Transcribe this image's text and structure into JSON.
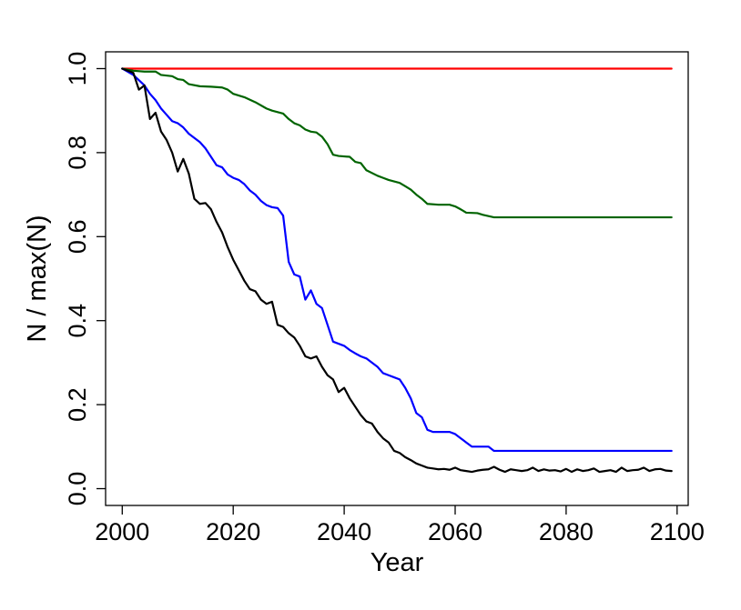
{
  "chart_data": {
    "type": "line",
    "title": "",
    "xlabel": "Year",
    "ylabel": "N / max(N)",
    "xlim": [
      1997,
      2102
    ],
    "ylim": [
      -0.04,
      1.04
    ],
    "x_ticks": [
      2000,
      2020,
      2040,
      2060,
      2080,
      2100
    ],
    "y_ticks": [
      0.0,
      0.2,
      0.4,
      0.6,
      0.8,
      1.0
    ],
    "x_tick_labels": [
      "2000",
      "2020",
      "2040",
      "2060",
      "2080",
      "2100"
    ],
    "y_tick_labels": [
      "0.0",
      "0.2",
      "0.4",
      "0.6",
      "0.8",
      "1.0"
    ],
    "grid": false,
    "series": [
      {
        "color": "#ff0000",
        "points": [
          [
            2000,
            1.0
          ],
          [
            2099,
            1.0
          ]
        ]
      },
      {
        "color": "#006400",
        "points": [
          [
            2000,
            1.0
          ],
          [
            2002,
            0.995
          ],
          [
            2004,
            0.993
          ],
          [
            2006,
            0.993
          ],
          [
            2007,
            0.985
          ],
          [
            2009,
            0.982
          ],
          [
            2010,
            0.975
          ],
          [
            2011,
            0.973
          ],
          [
            2012,
            0.963
          ],
          [
            2014,
            0.958
          ],
          [
            2016,
            0.957
          ],
          [
            2018,
            0.955
          ],
          [
            2019,
            0.95
          ],
          [
            2020,
            0.94
          ],
          [
            2022,
            0.932
          ],
          [
            2024,
            0.92
          ],
          [
            2026,
            0.905
          ],
          [
            2027,
            0.9
          ],
          [
            2029,
            0.893
          ],
          [
            2030,
            0.88
          ],
          [
            2031,
            0.87
          ],
          [
            2032,
            0.865
          ],
          [
            2033,
            0.855
          ],
          [
            2034,
            0.85
          ],
          [
            2035,
            0.848
          ],
          [
            2036,
            0.838
          ],
          [
            2037,
            0.82
          ],
          [
            2038,
            0.795
          ],
          [
            2039,
            0.792
          ],
          [
            2041,
            0.79
          ],
          [
            2042,
            0.778
          ],
          [
            2043,
            0.775
          ],
          [
            2044,
            0.758
          ],
          [
            2046,
            0.745
          ],
          [
            2047,
            0.74
          ],
          [
            2048,
            0.735
          ],
          [
            2050,
            0.728
          ],
          [
            2051,
            0.72
          ],
          [
            2052,
            0.712
          ],
          [
            2053,
            0.7
          ],
          [
            2054,
            0.69
          ],
          [
            2055,
            0.678
          ],
          [
            2057,
            0.676
          ],
          [
            2059,
            0.676
          ],
          [
            2060,
            0.672
          ],
          [
            2061,
            0.665
          ],
          [
            2062,
            0.657
          ],
          [
            2064,
            0.656
          ],
          [
            2065,
            0.652
          ],
          [
            2066,
            0.649
          ],
          [
            2067,
            0.646
          ],
          [
            2070,
            0.646
          ],
          [
            2080,
            0.646
          ],
          [
            2099,
            0.646
          ]
        ]
      },
      {
        "color": "#0000ff",
        "points": [
          [
            2000,
            1.0
          ],
          [
            2002,
            0.985
          ],
          [
            2004,
            0.96
          ],
          [
            2005,
            0.94
          ],
          [
            2006,
            0.925
          ],
          [
            2007,
            0.905
          ],
          [
            2008,
            0.89
          ],
          [
            2009,
            0.875
          ],
          [
            2010,
            0.87
          ],
          [
            2011,
            0.86
          ],
          [
            2012,
            0.845
          ],
          [
            2013,
            0.835
          ],
          [
            2014,
            0.825
          ],
          [
            2015,
            0.81
          ],
          [
            2016,
            0.79
          ],
          [
            2017,
            0.77
          ],
          [
            2018,
            0.765
          ],
          [
            2019,
            0.748
          ],
          [
            2020,
            0.74
          ],
          [
            2021,
            0.735
          ],
          [
            2022,
            0.725
          ],
          [
            2023,
            0.71
          ],
          [
            2024,
            0.7
          ],
          [
            2025,
            0.685
          ],
          [
            2026,
            0.675
          ],
          [
            2027,
            0.67
          ],
          [
            2028,
            0.668
          ],
          [
            2029,
            0.65
          ],
          [
            2030,
            0.54
          ],
          [
            2031,
            0.51
          ],
          [
            2032,
            0.505
          ],
          [
            2033,
            0.45
          ],
          [
            2034,
            0.472
          ],
          [
            2035,
            0.44
          ],
          [
            2036,
            0.43
          ],
          [
            2037,
            0.39
          ],
          [
            2038,
            0.35
          ],
          [
            2040,
            0.34
          ],
          [
            2041,
            0.33
          ],
          [
            2042,
            0.322
          ],
          [
            2043,
            0.315
          ],
          [
            2044,
            0.31
          ],
          [
            2045,
            0.3
          ],
          [
            2046,
            0.29
          ],
          [
            2047,
            0.275
          ],
          [
            2048,
            0.27
          ],
          [
            2049,
            0.265
          ],
          [
            2050,
            0.26
          ],
          [
            2051,
            0.24
          ],
          [
            2052,
            0.215
          ],
          [
            2053,
            0.18
          ],
          [
            2054,
            0.17
          ],
          [
            2055,
            0.14
          ],
          [
            2056,
            0.135
          ],
          [
            2059,
            0.135
          ],
          [
            2060,
            0.13
          ],
          [
            2061,
            0.12
          ],
          [
            2062,
            0.11
          ],
          [
            2063,
            0.1
          ],
          [
            2066,
            0.1
          ],
          [
            2067,
            0.09
          ],
          [
            2070,
            0.09
          ],
          [
            2080,
            0.09
          ],
          [
            2099,
            0.09
          ]
        ]
      },
      {
        "color": "#000000",
        "points": [
          [
            2000,
            1.0
          ],
          [
            2002,
            0.99
          ],
          [
            2003,
            0.95
          ],
          [
            2004,
            0.96
          ],
          [
            2005,
            0.88
          ],
          [
            2006,
            0.895
          ],
          [
            2007,
            0.85
          ],
          [
            2008,
            0.83
          ],
          [
            2009,
            0.8
          ],
          [
            2010,
            0.755
          ],
          [
            2011,
            0.785
          ],
          [
            2012,
            0.75
          ],
          [
            2013,
            0.69
          ],
          [
            2014,
            0.678
          ],
          [
            2015,
            0.68
          ],
          [
            2016,
            0.665
          ],
          [
            2017,
            0.635
          ],
          [
            2018,
            0.61
          ],
          [
            2019,
            0.575
          ],
          [
            2020,
            0.545
          ],
          [
            2021,
            0.52
          ],
          [
            2022,
            0.495
          ],
          [
            2023,
            0.475
          ],
          [
            2024,
            0.47
          ],
          [
            2025,
            0.45
          ],
          [
            2026,
            0.44
          ],
          [
            2027,
            0.445
          ],
          [
            2028,
            0.39
          ],
          [
            2029,
            0.385
          ],
          [
            2030,
            0.37
          ],
          [
            2031,
            0.36
          ],
          [
            2032,
            0.34
          ],
          [
            2033,
            0.315
          ],
          [
            2034,
            0.31
          ],
          [
            2035,
            0.315
          ],
          [
            2036,
            0.29
          ],
          [
            2037,
            0.27
          ],
          [
            2038,
            0.26
          ],
          [
            2039,
            0.23
          ],
          [
            2040,
            0.24
          ],
          [
            2041,
            0.215
          ],
          [
            2042,
            0.195
          ],
          [
            2043,
            0.175
          ],
          [
            2044,
            0.16
          ],
          [
            2045,
            0.155
          ],
          [
            2046,
            0.135
          ],
          [
            2047,
            0.12
          ],
          [
            2048,
            0.11
          ],
          [
            2049,
            0.09
          ],
          [
            2050,
            0.085
          ],
          [
            2051,
            0.075
          ],
          [
            2052,
            0.068
          ],
          [
            2053,
            0.06
          ],
          [
            2054,
            0.055
          ],
          [
            2055,
            0.05
          ],
          [
            2056,
            0.048
          ],
          [
            2057,
            0.046
          ],
          [
            2058,
            0.047
          ],
          [
            2059,
            0.045
          ],
          [
            2060,
            0.05
          ],
          [
            2061,
            0.044
          ],
          [
            2062,
            0.042
          ],
          [
            2063,
            0.04
          ],
          [
            2064,
            0.043
          ],
          [
            2065,
            0.045
          ],
          [
            2066,
            0.046
          ],
          [
            2067,
            0.052
          ],
          [
            2068,
            0.045
          ],
          [
            2069,
            0.04
          ],
          [
            2070,
            0.046
          ],
          [
            2071,
            0.044
          ],
          [
            2072,
            0.042
          ],
          [
            2073,
            0.044
          ],
          [
            2074,
            0.05
          ],
          [
            2075,
            0.042
          ],
          [
            2076,
            0.046
          ],
          [
            2077,
            0.043
          ],
          [
            2078,
            0.044
          ],
          [
            2079,
            0.041
          ],
          [
            2080,
            0.047
          ],
          [
            2081,
            0.04
          ],
          [
            2082,
            0.046
          ],
          [
            2083,
            0.042
          ],
          [
            2084,
            0.044
          ],
          [
            2085,
            0.048
          ],
          [
            2086,
            0.04
          ],
          [
            2087,
            0.042
          ],
          [
            2088,
            0.044
          ],
          [
            2089,
            0.04
          ],
          [
            2090,
            0.05
          ],
          [
            2091,
            0.042
          ],
          [
            2092,
            0.044
          ],
          [
            2093,
            0.045
          ],
          [
            2094,
            0.05
          ],
          [
            2095,
            0.042
          ],
          [
            2096,
            0.046
          ],
          [
            2097,
            0.047
          ],
          [
            2098,
            0.043
          ],
          [
            2099,
            0.042
          ]
        ]
      }
    ]
  }
}
